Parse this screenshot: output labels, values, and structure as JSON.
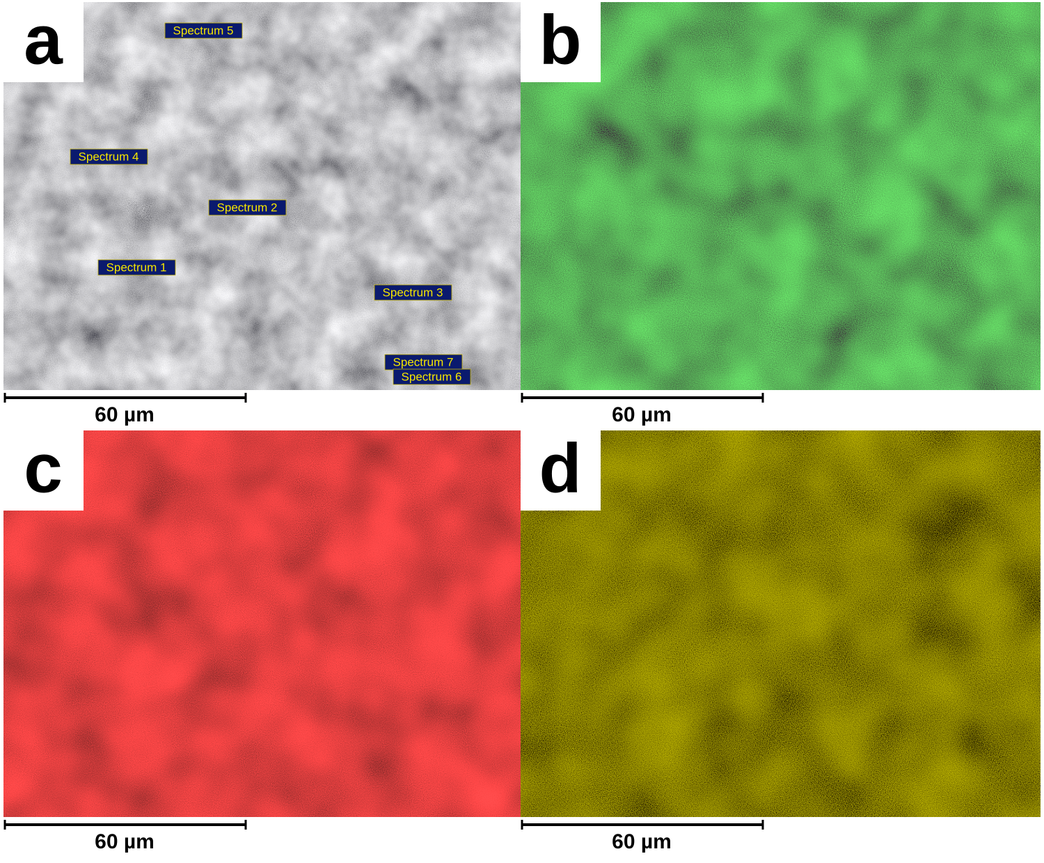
{
  "panels": [
    {
      "label": "a",
      "scale_bar": "60 µm",
      "spectra": [
        "Spectrum 5",
        "Spectrum 4",
        "Spectrum 2",
        "Spectrum 1",
        "Spectrum 3",
        "Spectrum 7",
        "Spectrum 6"
      ]
    },
    {
      "label": "b",
      "scale_bar": "60 µm"
    },
    {
      "label": "c",
      "scale_bar": "60 µm"
    },
    {
      "label": "d",
      "scale_bar": "60 µm"
    }
  ]
}
